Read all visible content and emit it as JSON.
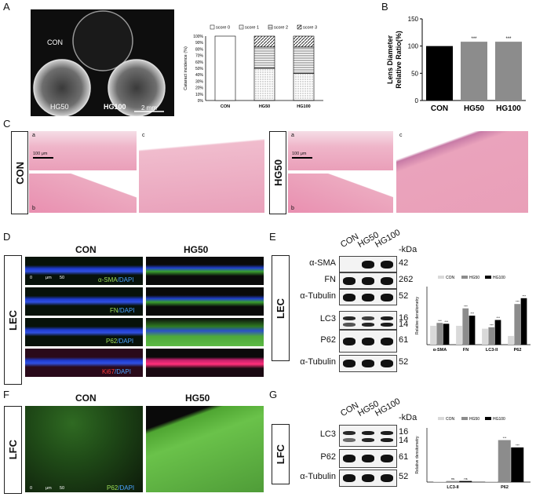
{
  "panels": {
    "A": "A",
    "B": "B",
    "C": "C",
    "D": "D",
    "E": "E",
    "F": "F",
    "G": "G"
  },
  "panelA": {
    "photo_labels": {
      "con": "CON",
      "hg50": "HG50",
      "hg100": "HG100",
      "scale": "2 mm"
    },
    "chart_data": {
      "type": "bar",
      "stacked": true,
      "categories": [
        "CON",
        "HG50",
        "HG100"
      ],
      "ylabel": "Cataract incidence (%)",
      "yticks": [
        "0%",
        "10%",
        "20%",
        "30%",
        "40%",
        "50%",
        "60%",
        "70%",
        "80%",
        "90%",
        "100%"
      ],
      "ylim": [
        0,
        100
      ],
      "legend_position": "top",
      "series": [
        {
          "name": "score 0",
          "values": [
            100,
            0,
            0
          ],
          "pattern": "blank"
        },
        {
          "name": "score 1",
          "values": [
            0,
            50,
            42
          ],
          "pattern": "dots"
        },
        {
          "name": "score 2",
          "values": [
            0,
            33,
            41
          ],
          "pattern": "hlines"
        },
        {
          "name": "score 3",
          "values": [
            0,
            17,
            17
          ],
          "pattern": "diag"
        }
      ]
    }
  },
  "panelB": {
    "chart_data": {
      "type": "bar",
      "categories": [
        "CON",
        "HG50",
        "HG100"
      ],
      "values": [
        100,
        108,
        108
      ],
      "ylabel": "Lens Diameter Relative Ratio(%)",
      "yticks": [
        "0",
        "50",
        "100",
        "150"
      ],
      "ylim": [
        0,
        150
      ],
      "colors": [
        "#000000",
        "#8c8c8c",
        "#8c8c8c"
      ],
      "significance": [
        "",
        "***",
        "***"
      ]
    }
  },
  "panelC": {
    "groups": [
      "CON",
      "HG50"
    ],
    "sub": {
      "a": "a",
      "b": "b",
      "c": "c"
    },
    "scale": "100 μm"
  },
  "panelD": {
    "side": "LEC",
    "columns": [
      "CON",
      "HG50"
    ],
    "rows": [
      {
        "marker": "α-SMA",
        "dapi": "/DAPI",
        "color": "#9fe05a"
      },
      {
        "marker": "FN",
        "dapi": "/DAPI",
        "color": "#9fe05a"
      },
      {
        "marker": "P62",
        "dapi": "/DAPI",
        "color": "#9fe05a"
      },
      {
        "marker": "Ki67",
        "dapi": "/DAPI",
        "color": "#ff3a3a"
      }
    ],
    "scale": {
      "left": "0",
      "mid": "μm",
      "right": "50"
    }
  },
  "panelE": {
    "side": "LEC",
    "lanes": [
      "CON",
      "HG50",
      "HG100"
    ],
    "kda": "-kDa",
    "blots": [
      {
        "name": "α-SMA",
        "kda": [
          "42"
        ]
      },
      {
        "name": "FN",
        "kda": [
          "262"
        ]
      },
      {
        "name": "α-Tubulin",
        "kda": [
          "52"
        ]
      },
      {
        "name": "LC3",
        "kda": [
          "16",
          "14"
        ]
      },
      {
        "name": "P62",
        "kda": [
          "61"
        ]
      },
      {
        "name": "α-Tubulin",
        "kda": [
          "52"
        ]
      }
    ],
    "chart_data": {
      "type": "bar",
      "categories": [
        "α-SMA",
        "FN",
        "LC3-II",
        "P62"
      ],
      "ylabel": "Relative densitometry",
      "ylim": [
        0,
        2
      ],
      "legend_position": "top",
      "series": [
        {
          "name": "CON",
          "values": [
            0.65,
            0.65,
            0.55,
            0.3
          ],
          "color": "#d9d9d9"
        },
        {
          "name": "HG50",
          "values": [
            0.75,
            1.25,
            0.6,
            1.4
          ],
          "color": "#8c8c8c"
        },
        {
          "name": "HG100",
          "values": [
            0.72,
            1.0,
            0.85,
            1.6
          ],
          "color": "#000000"
        }
      ],
      "significance": "***"
    }
  },
  "panelF": {
    "side": "LFC",
    "columns": [
      "CON",
      "HG50"
    ],
    "marker": "P62",
    "dapi": "/DAPI",
    "scale": {
      "left": "0",
      "mid": "μm",
      "right": "50"
    }
  },
  "panelG": {
    "side": "LFC",
    "lanes": [
      "CON",
      "HG50",
      "HG100"
    ],
    "kda": "-kDa",
    "blots": [
      {
        "name": "LC3",
        "kda": [
          "16",
          "14"
        ]
      },
      {
        "name": "P62",
        "kda": [
          "61"
        ]
      },
      {
        "name": "α-Tubulin",
        "kda": [
          "52"
        ]
      }
    ],
    "chart_data": {
      "type": "bar",
      "categories": [
        "LC3-II",
        "P62"
      ],
      "ylabel": "Relative densitometry",
      "ylim": [
        0,
        2
      ],
      "legend_position": "top",
      "series": [
        {
          "name": "CON",
          "values": [
            0.02,
            0.03
          ],
          "color": "#d9d9d9"
        },
        {
          "name": "HG50",
          "values": [
            0.04,
            1.55
          ],
          "color": "#8c8c8c"
        },
        {
          "name": "HG100",
          "values": [
            0.04,
            1.28
          ],
          "color": "#000000"
        }
      ],
      "annotations": [
        "ns",
        "ns",
        "***",
        "***"
      ]
    }
  }
}
